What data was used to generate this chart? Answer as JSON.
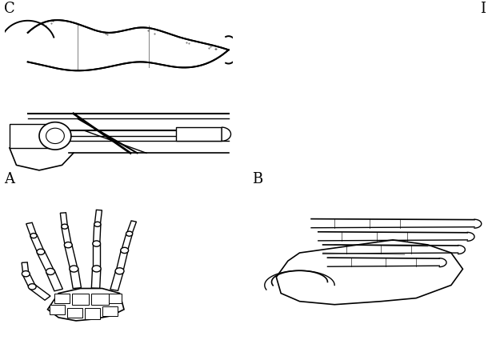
{
  "background_color": "#ffffff",
  "label_A": "A",
  "label_B": "B",
  "label_C": "C",
  "label_D": "I",
  "label_fontsize": 13,
  "fig_width": 6.2,
  "fig_height": 4.3,
  "dpi": 100
}
